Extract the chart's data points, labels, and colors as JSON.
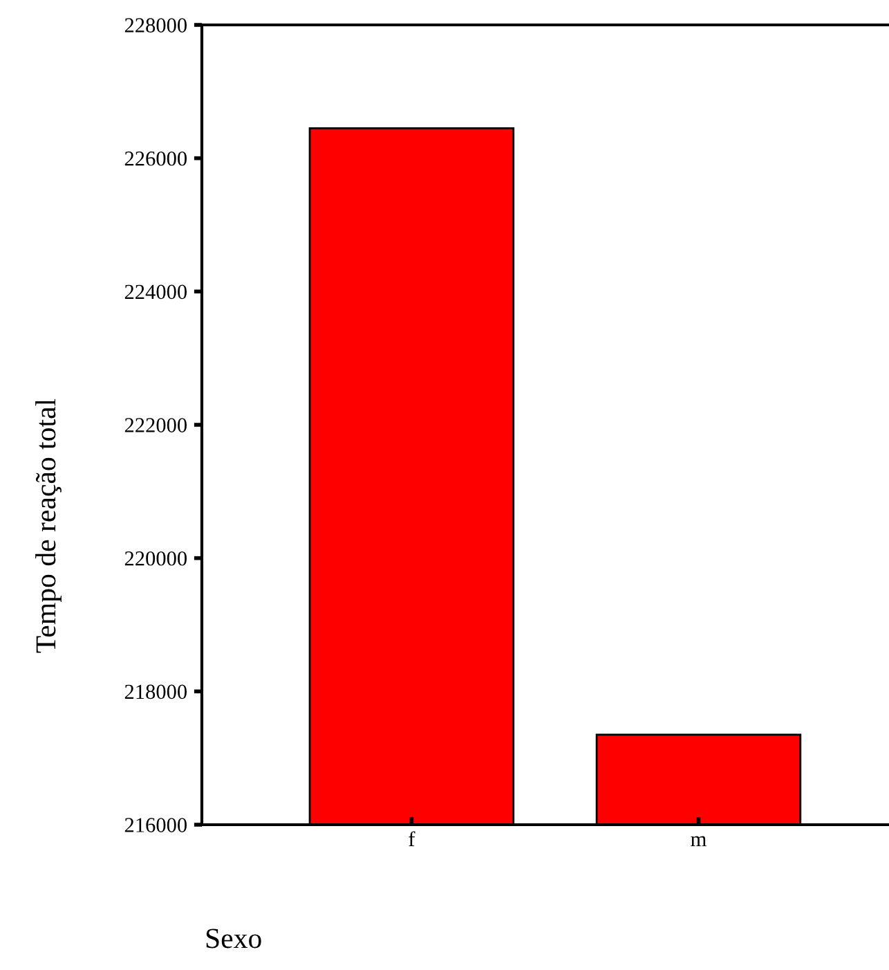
{
  "chart_data": {
    "type": "bar",
    "xlabel": "Sexo",
    "ylabel": "Tempo de reação total",
    "categories": [
      "f",
      "m"
    ],
    "values": [
      226450,
      217350
    ],
    "color": "#ff0000",
    "ylim": [
      216000,
      228000
    ],
    "yticks": [
      216000,
      218000,
      220000,
      222000,
      224000,
      226000,
      228000
    ],
    "grid": false,
    "legend": false
  }
}
